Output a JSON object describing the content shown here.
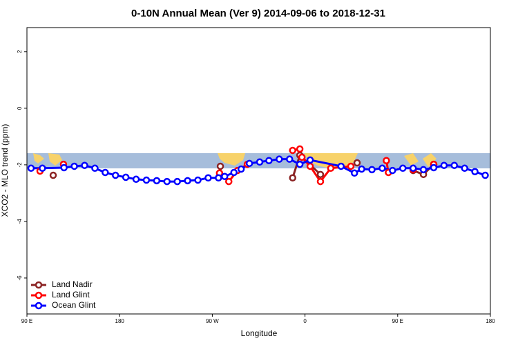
{
  "chart_data": {
    "type": "line",
    "title": "0-10N Annual Mean (Ver 9)   2014-09-06 to 2018-12-31",
    "x_label": "Longitude",
    "y_label": "XCO2 - MLO trend (ppm)",
    "xlim": [
      90,
      540
    ],
    "xticks": [
      {
        "value": 90,
        "label": "90 E"
      },
      180,
      {
        "value": 270,
        "label": "90 W"
      },
      {
        "value": 360,
        "label": "0"
      },
      {
        "value": 450,
        "label": "90 E"
      },
      {
        "value": 540,
        "label": "180"
      }
    ],
    "ylim": [
      -7.27,
      2.85
    ],
    "yticks": [
      -6,
      -4,
      -2,
      0,
      2
    ],
    "legend": "bottomleft",
    "series": [
      {
        "name": "Land Nadir",
        "color": "#8b2323",
        "x": [
          115.5,
          null,
          277.8,
          null,
          348,
          355,
          375,
          null,
          410.6,
          null,
          465,
          475,
          485
        ],
        "values": [
          -2.37,
          null,
          -2.05,
          null,
          -2.46,
          -1.66,
          -2.34,
          null,
          -1.93,
          null,
          -2.2,
          -2.34,
          -1.98
        ]
      },
      {
        "name": "Land Glint",
        "color": "#ff0000",
        "x": [
          102.7,
          null,
          125.5,
          null,
          277,
          286,
          294.5,
          304,
          null,
          348,
          355,
          357,
          365,
          375,
          385,
          404.5,
          null,
          439,
          441,
          null,
          465,
          null,
          485
        ],
        "values": [
          -2.22,
          null,
          -1.98,
          null,
          -2.29,
          -2.59,
          -2.2,
          -1.98,
          null,
          -1.49,
          -1.44,
          -1.73,
          -2.05,
          -2.59,
          -2.12,
          -2.05,
          null,
          -1.85,
          -2.27,
          null,
          -2.17,
          null,
          -1.98
        ]
      },
      {
        "name": "Ocean Glint",
        "color": "#0000ff",
        "x": [
          94,
          105,
          126,
          136,
          146,
          156,
          166,
          176,
          186,
          196,
          206,
          216,
          226,
          236,
          246,
          256,
          266,
          276,
          282,
          291,
          298,
          306,
          316,
          325,
          335,
          345,
          355,
          365,
          395,
          408,
          415,
          425,
          435,
          445,
          455,
          465,
          475,
          485,
          495,
          505,
          515,
          525,
          535
        ],
        "values": [
          -2.12,
          -2.12,
          -2.1,
          -2.05,
          -2.02,
          -2.12,
          -2.27,
          -2.37,
          -2.44,
          -2.51,
          -2.54,
          -2.56,
          -2.59,
          -2.59,
          -2.56,
          -2.54,
          -2.46,
          -2.46,
          -2.41,
          -2.27,
          -2.15,
          -1.95,
          -1.9,
          -1.85,
          -1.8,
          -1.8,
          -1.98,
          -1.83,
          -2.05,
          -2.29,
          -2.15,
          -2.17,
          -2.12,
          -2.2,
          -2.12,
          -2.12,
          -2.17,
          -2.1,
          -2.02,
          -2.02,
          -2.12,
          -2.24,
          -2.37
        ]
      }
    ]
  }
}
